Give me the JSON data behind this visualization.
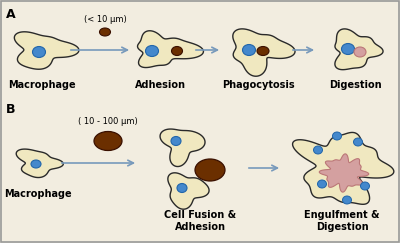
{
  "bg_color": "#f2ede0",
  "border_color": "#2a2a2a",
  "cell_fill": "#f0e8c0",
  "nucleus_blue": "#4488cc",
  "particle_brown": "#6b2f00",
  "digested_pink": "#d4a0a0",
  "arrow_color": "#7799bb",
  "label_A": "A",
  "label_B": "B",
  "labels_row1": [
    "Macrophage",
    "Adhesion",
    "Phagocytosis",
    "Digestion"
  ],
  "labels_row2_1": "Macrophage",
  "labels_row2_2": "Cell Fusion &\nAdhesion",
  "labels_row2_3": "Engulfment &\nDigestion",
  "size_label_A": "(< 10 μm)",
  "size_label_B": "( 10 - 100 μm)",
  "font_size_label": 7.0,
  "font_size_AB": 9,
  "line_width": 1.0
}
